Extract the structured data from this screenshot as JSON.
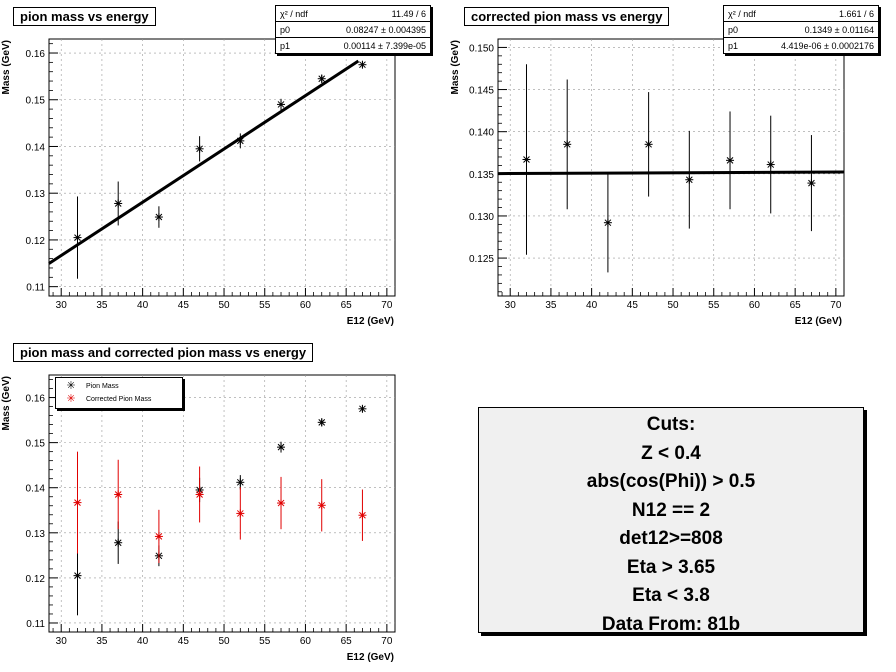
{
  "panels": [
    {
      "id": "p1",
      "title": "pion mass vs energy",
      "stats": {
        "rows": [
          [
            "χ² / ndf",
            "11.49 / 6"
          ],
          [
            "p0",
            "0.08247 ± 0.004395"
          ],
          [
            "p1",
            "0.00114 ± 7.399e-05"
          ]
        ]
      },
      "xlabel": "E12 (GeV)",
      "ylabel": "Mass (GeV)",
      "xlim": [
        28.5,
        71
      ],
      "ylim": [
        0.108,
        0.163
      ],
      "xticks": [
        30,
        35,
        40,
        45,
        50,
        55,
        60,
        65,
        70
      ],
      "yticks": [
        0.11,
        0.12,
        0.13,
        0.14,
        0.15,
        0.16
      ],
      "yfmt": 2
    },
    {
      "id": "p2",
      "title": "corrected pion mass vs energy",
      "stats": {
        "rows": [
          [
            "χ² / ndf",
            "1.661 / 6"
          ],
          [
            "p0",
            "0.1349 ± 0.01164"
          ],
          [
            "p1",
            "4.419e-06 ± 0.0002176"
          ]
        ]
      },
      "xlabel": "E12 (GeV)",
      "ylabel": "Mass (GeV)",
      "xlim": [
        28.5,
        71
      ],
      "ylim": [
        0.1205,
        0.151
      ],
      "xticks": [
        30,
        35,
        40,
        45,
        50,
        55,
        60,
        65,
        70
      ],
      "yticks": [
        0.125,
        0.13,
        0.135,
        0.14,
        0.145,
        0.15
      ],
      "yfmt": 3
    },
    {
      "id": "p3",
      "title": "pion mass and corrected pion mass vs energy",
      "xlabel": "E12 (GeV)",
      "ylabel": "Mass (GeV)",
      "xlim": [
        28.5,
        71
      ],
      "ylim": [
        0.108,
        0.165
      ],
      "xticks": [
        30,
        35,
        40,
        45,
        50,
        55,
        60,
        65,
        70
      ],
      "yticks": [
        0.11,
        0.12,
        0.13,
        0.14,
        0.15,
        0.16
      ],
      "yfmt": 2,
      "legend": {
        "entries": [
          {
            "label": "Pion Mass",
            "color": "#000000"
          },
          {
            "label": "Corrected Pion Mass",
            "color": "#e00000"
          }
        ]
      }
    }
  ],
  "chart_data": [
    {
      "type": "scatter",
      "title": "pion mass vs energy",
      "xlabel": "E12 (GeV)",
      "ylabel": "Mass (GeV)",
      "xlim": [
        28.5,
        71
      ],
      "ylim": [
        0.108,
        0.163
      ],
      "series": [
        {
          "x": [
            32,
            37,
            42,
            47,
            52,
            57,
            62,
            67
          ],
          "y": [
            0.1205,
            0.1278,
            0.1249,
            0.1395,
            0.1412,
            0.149,
            0.1545,
            0.1575
          ],
          "err": [
            0.0088,
            0.0047,
            0.0023,
            0.0027,
            0.0016,
            0.0012,
            0.0009,
            0.0007
          ],
          "color": "#000000"
        }
      ],
      "fit": {
        "p0": 0.08247,
        "p1": 0.00114,
        "x_from": 28.5,
        "x_to": 66.5
      }
    },
    {
      "type": "scatter",
      "title": "corrected pion mass vs energy",
      "xlabel": "E12 (GeV)",
      "ylabel": "Mass (GeV)",
      "xlim": [
        28.5,
        71
      ],
      "ylim": [
        0.1205,
        0.151
      ],
      "series": [
        {
          "x": [
            32,
            37,
            42,
            47,
            52,
            57,
            62,
            67
          ],
          "y": [
            0.1367,
            0.1385,
            0.1292,
            0.1385,
            0.1343,
            0.1366,
            0.1361,
            0.1339
          ],
          "err": [
            0.0113,
            0.0077,
            0.0059,
            0.0062,
            0.0058,
            0.0058,
            0.0058,
            0.0057
          ],
          "color": "#000000"
        }
      ],
      "fit": {
        "p0": 0.1349,
        "p1": 4.419e-06,
        "x_from": 28.5,
        "x_to": 71
      }
    },
    {
      "type": "scatter",
      "title": "pion mass and corrected pion mass vs energy",
      "xlabel": "E12 (GeV)",
      "ylabel": "Mass (GeV)",
      "xlim": [
        28.5,
        71
      ],
      "ylim": [
        0.108,
        0.165
      ],
      "legend": "top-left",
      "series": [
        {
          "name": "Pion Mass",
          "x": [
            32,
            37,
            42,
            47,
            52,
            57,
            62,
            67
          ],
          "y": [
            0.1205,
            0.1278,
            0.1249,
            0.1395,
            0.1412,
            0.149,
            0.1545,
            0.1575
          ],
          "err": [
            0.0088,
            0.0047,
            0.0023,
            0.0027,
            0.0016,
            0.0012,
            0.0009,
            0.0007
          ],
          "color": "#000000"
        },
        {
          "name": "Corrected Pion Mass",
          "x": [
            32,
            37,
            42,
            47,
            52,
            57,
            62,
            67
          ],
          "y": [
            0.1367,
            0.1385,
            0.1292,
            0.1385,
            0.1343,
            0.1366,
            0.1361,
            0.1339
          ],
          "err": [
            0.0113,
            0.0077,
            0.0059,
            0.0062,
            0.0058,
            0.0058,
            0.0058,
            0.0057
          ],
          "color": "#e00000"
        }
      ]
    }
  ],
  "cuts": {
    "lines": [
      "Cuts:",
      "Z < 0.4",
      "abs(cos(Phi)) > 0.5",
      "N12 == 2",
      "det12>=808",
      "Eta > 3.65",
      "Eta < 3.8",
      "Data From: 81b"
    ]
  }
}
